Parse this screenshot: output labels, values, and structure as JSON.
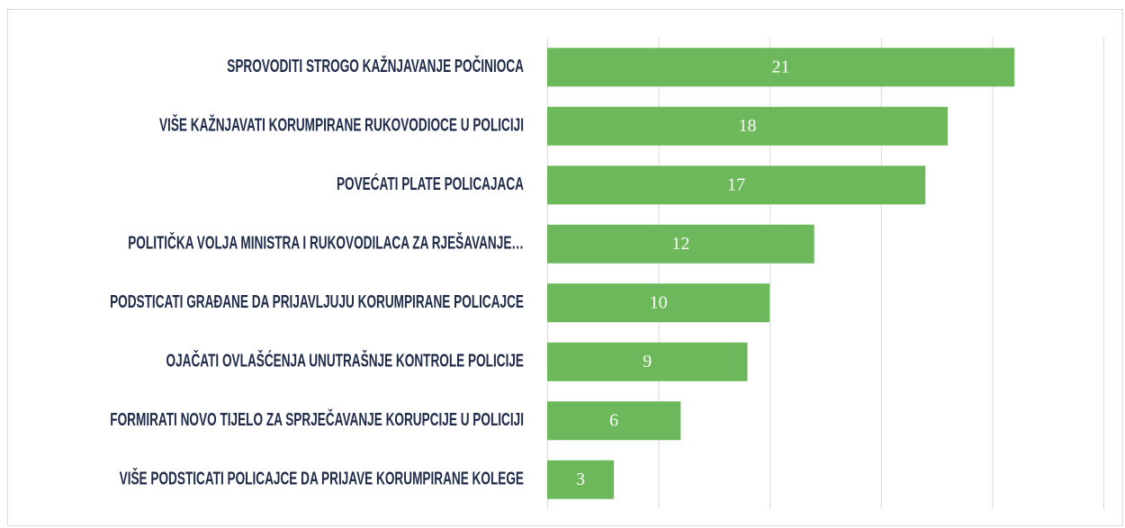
{
  "chart_data": {
    "type": "hbar",
    "categories": [
      "SPROVODITI STROGO KAŽNJAVANJE POČINIOCA",
      "VIŠE KAŽNJAVATI KORUMPIRANE RUKOVODIOCE U POLICIJI",
      "POVEĆATI PLATE POLICAJACA",
      "POLITIČKA VOLJA MINISTRA I RUKOVODILACA ZA RJEŠAVANJE…",
      "PODSTICATI GRAĐANE DA PRIJAVLJUJU KORUMPIRANE POLICAJCE",
      "OJAČATI OVLAŠĆENJA UNUTRAŠNJE KONTROLE POLICIJE",
      "FORMIRATI NOVO TIJELO ZA SPRJEČAVANJE KORUPCIJE U POLICIJI",
      "VIŠE PODSTICATI POLICAJCE DA PRIJAVE KORUMPIRANE KOLEGE"
    ],
    "values": [
      21,
      18,
      17,
      12,
      10,
      9,
      6,
      3
    ],
    "color": "#6cb85b",
    "xlim": [
      0,
      25
    ],
    "xticks": [
      0,
      5,
      10,
      15,
      20,
      25
    ],
    "grid": true
  }
}
